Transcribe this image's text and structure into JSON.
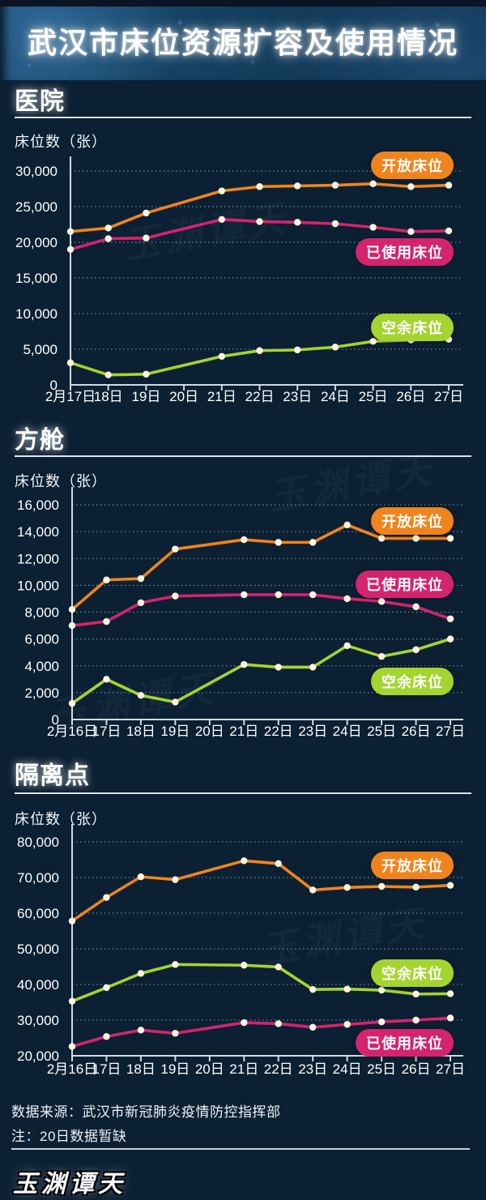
{
  "header": {
    "title": "武汉市床位资源扩容及使用情况"
  },
  "sections": [
    {
      "heading": "医院",
      "y_axis_label": "床位数（张）",
      "chart_data": {
        "type": "line",
        "title": "医院",
        "ylabel": "床位数（张）",
        "categories": [
          "2月17日",
          "18日",
          "19日",
          "20日",
          "21日",
          "22日",
          "23日",
          "24日",
          "25日",
          "26日",
          "27日"
        ],
        "ylim": [
          0,
          30000
        ],
        "ytick_labels": [
          "0",
          "5,000",
          "10,000",
          "15,000",
          "20,000",
          "25,000",
          "30,000"
        ],
        "grid": true,
        "legend_position": "right-inside",
        "missing_data_note": "20日数据暂缺",
        "series": [
          {
            "name": "开放床位",
            "color": "#f0841c",
            "values": [
              21500,
              22000,
              24100,
              null,
              27200,
              27800,
              27900,
              28000,
              28200,
              27800,
              28000
            ]
          },
          {
            "name": "已使用床位",
            "color": "#d4246d",
            "values": [
              19000,
              20500,
              20600,
              null,
              23200,
              22900,
              22800,
              22600,
              22100,
              21500,
              21600
            ]
          },
          {
            "name": "空余床位",
            "color": "#a4d430",
            "values": [
              3100,
              1400,
              1500,
              null,
              4000,
              4800,
              4900,
              5300,
              6100,
              6300,
              6400
            ]
          }
        ]
      }
    },
    {
      "heading": "方舱",
      "y_axis_label": "床位数（张）",
      "chart_data": {
        "type": "line",
        "title": "方舱",
        "ylabel": "床位数（张）",
        "categories": [
          "2月16日",
          "17日",
          "18日",
          "19日",
          "20日",
          "21日",
          "22日",
          "23日",
          "24日",
          "25日",
          "26日",
          "27日"
        ],
        "ylim": [
          0,
          16000
        ],
        "ytick_labels": [
          "0",
          "2,000",
          "4,000",
          "6,000",
          "8,000",
          "10,000",
          "12,000",
          "14,000",
          "16,000"
        ],
        "grid": true,
        "legend_position": "right-inside",
        "missing_data_note": "20日数据暂缺",
        "series": [
          {
            "name": "开放床位",
            "color": "#f0841c",
            "values": [
              8200,
              10400,
              10500,
              12700,
              null,
              13400,
              13200,
              13200,
              14500,
              13500,
              13500,
              13500
            ]
          },
          {
            "name": "已使用床位",
            "color": "#d4246d",
            "values": [
              7000,
              7300,
              8700,
              9200,
              null,
              9300,
              9300,
              9300,
              9000,
              8800,
              8400,
              7500
            ]
          },
          {
            "name": "空余床位",
            "color": "#a4d430",
            "values": [
              1200,
              3000,
              1800,
              1300,
              null,
              4100,
              3900,
              3900,
              5500,
              4700,
              5200,
              6000
            ]
          }
        ]
      }
    },
    {
      "heading": "隔离点",
      "y_axis_label": "床位数（张）",
      "chart_data": {
        "type": "line",
        "title": "隔离点",
        "ylabel": "床位数（张）",
        "categories": [
          "2月16日",
          "17日",
          "18日",
          "19日",
          "20日",
          "21日",
          "22日",
          "23日",
          "24日",
          "25日",
          "26日",
          "27日"
        ],
        "ylim": [
          20000,
          80000
        ],
        "ytick_labels": [
          "20,000",
          "30,000",
          "40,000",
          "50,000",
          "60,000",
          "70,000",
          "80,000"
        ],
        "grid": true,
        "legend_position": "right-inside",
        "missing_data_note": "20日数据暂缺",
        "series": [
          {
            "name": "开放床位",
            "color": "#f0841c",
            "values": [
              57800,
              64400,
              70200,
              69400,
              null,
              74700,
              73900,
              66500,
              67200,
              67500,
              67300,
              67800
            ]
          },
          {
            "name": "空余床位",
            "color": "#a4d430",
            "values": [
              35300,
              39100,
              43100,
              45600,
              null,
              45400,
              44900,
              38600,
              38700,
              38400,
              37300,
              37400
            ]
          },
          {
            "name": "已使用床位",
            "color": "#d4246d",
            "values": [
              22600,
              25400,
              27200,
              26300,
              null,
              29300,
              29000,
              28000,
              28800,
              29500,
              30000,
              30600
            ]
          }
        ]
      }
    }
  ],
  "footer": {
    "source": "数据来源：武汉市新冠肺炎疫情防控指挥部",
    "note": "注：20日数据暂缺",
    "logo": "玉渊谭天"
  }
}
